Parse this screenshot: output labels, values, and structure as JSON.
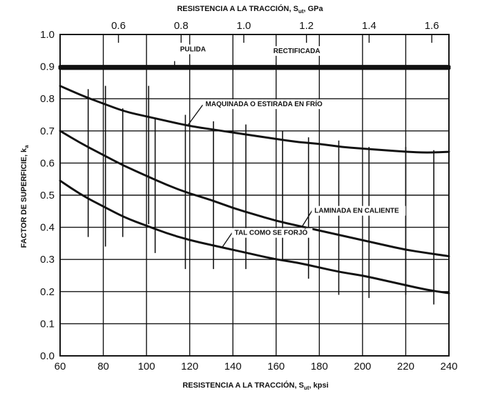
{
  "chart_data": {
    "type": "line",
    "title": "",
    "xlabel": "RESISTENCIA A LA TRACCIÓN, S",
    "xlabel_sub": "ut",
    "xlabel_unit": ", kpsi",
    "x2label": "RESISTENCIA A LA TRACCIÓN, S",
    "x2label_sub": "ut",
    "x2label_unit": ", GPa",
    "ylabel": "FACTOR DE SUPERFICIE, k",
    "ylabel_sub": "a",
    "xlim": [
      60,
      240
    ],
    "ylim": [
      0.0,
      1.0
    ],
    "x_ticks": [
      "60",
      "80",
      "100",
      "120",
      "140",
      "160",
      "180",
      "200",
      "220",
      "240"
    ],
    "x2_ticks": [
      {
        "value": 0.6,
        "label": "0.6"
      },
      {
        "value": 0.8,
        "label": "0.8"
      },
      {
        "value": 1.0,
        "label": "1.0"
      },
      {
        "value": 1.2,
        "label": "1.2"
      },
      {
        "value": 1.4,
        "label": "1.4"
      },
      {
        "value": 1.6,
        "label": "1.6"
      }
    ],
    "y_ticks": [
      "0.0",
      "0.1",
      "0.2",
      "0.3",
      "0.4",
      "0.5",
      "0.6",
      "0.7",
      "0.8",
      "0.9",
      "1.0"
    ],
    "grid": true,
    "series": [
      {
        "name": "PULIDA",
        "x": [
          60,
          240
        ],
        "y": [
          0.9,
          0.9
        ]
      },
      {
        "name": "RECTIFICADA",
        "x": [
          60,
          240
        ],
        "y": [
          0.895,
          0.895
        ]
      },
      {
        "name": "MAQUINADA O ESTIRADA EN FRÍO",
        "x": [
          60,
          70,
          80,
          90,
          100,
          110,
          120,
          130,
          140,
          150,
          160,
          170,
          180,
          190,
          200,
          210,
          220,
          230,
          240
        ],
        "y": [
          0.84,
          0.81,
          0.785,
          0.76,
          0.745,
          0.73,
          0.715,
          0.705,
          0.695,
          0.685,
          0.675,
          0.665,
          0.66,
          0.65,
          0.645,
          0.64,
          0.635,
          0.632,
          0.635
        ]
      },
      {
        "name": "LAMINADA EN CALIENTE",
        "x": [
          60,
          70,
          80,
          90,
          100,
          110,
          120,
          130,
          140,
          150,
          160,
          170,
          180,
          190,
          200,
          210,
          220,
          230,
          240
        ],
        "y": [
          0.7,
          0.66,
          0.625,
          0.59,
          0.56,
          0.53,
          0.505,
          0.485,
          0.46,
          0.44,
          0.42,
          0.405,
          0.39,
          0.375,
          0.36,
          0.345,
          0.33,
          0.32,
          0.31
        ]
      },
      {
        "name": "TAL COMO SE FORJÓ",
        "x": [
          60,
          70,
          80,
          90,
          100,
          110,
          120,
          130,
          140,
          150,
          160,
          170,
          180,
          190,
          200,
          210,
          220,
          230,
          240
        ],
        "y": [
          0.545,
          0.5,
          0.465,
          0.43,
          0.405,
          0.38,
          0.36,
          0.345,
          0.33,
          0.315,
          0.3,
          0.29,
          0.275,
          0.26,
          0.25,
          0.235,
          0.22,
          0.205,
          0.195
        ]
      }
    ],
    "scatter_bands": [
      {
        "x": 73,
        "y": [
          0.37,
          0.83
        ]
      },
      {
        "x": 81,
        "y": [
          0.34,
          0.84
        ]
      },
      {
        "x": 89,
        "y": [
          0.37,
          0.77
        ]
      },
      {
        "x": 101,
        "y": [
          0.41,
          0.84
        ]
      },
      {
        "x": 104,
        "y": [
          0.32,
          0.74
        ]
      },
      {
        "x": 118,
        "y": [
          0.27,
          0.75
        ]
      },
      {
        "x": 131,
        "y": [
          0.27,
          0.73
        ]
      },
      {
        "x": 146,
        "y": [
          0.27,
          0.72
        ]
      },
      {
        "x": 163,
        "y": [
          0.3,
          0.7
        ]
      },
      {
        "x": 175,
        "y": [
          0.24,
          0.68
        ]
      },
      {
        "x": 189,
        "y": [
          0.19,
          0.67
        ]
      },
      {
        "x": 203,
        "y": [
          0.18,
          0.65
        ]
      },
      {
        "x": 220,
        "y": [
          0.19,
          0.65
        ]
      },
      {
        "x": 233,
        "y": [
          0.16,
          0.64
        ]
      }
    ],
    "annotations": [
      {
        "text": "PULIDA",
        "series": 0,
        "x": 113
      },
      {
        "text": "RECTIFICADA",
        "series": 1,
        "x": 160
      },
      {
        "text": "MAQUINADA O ESTIRADA EN FRÍO",
        "series": 2,
        "x": 119
      },
      {
        "text": "LAMINADA EN CALIENTE",
        "series": 3,
        "x": 172
      },
      {
        "text": "TAL COMO SE FORJÓ",
        "series": 4,
        "x": 135
      }
    ]
  }
}
